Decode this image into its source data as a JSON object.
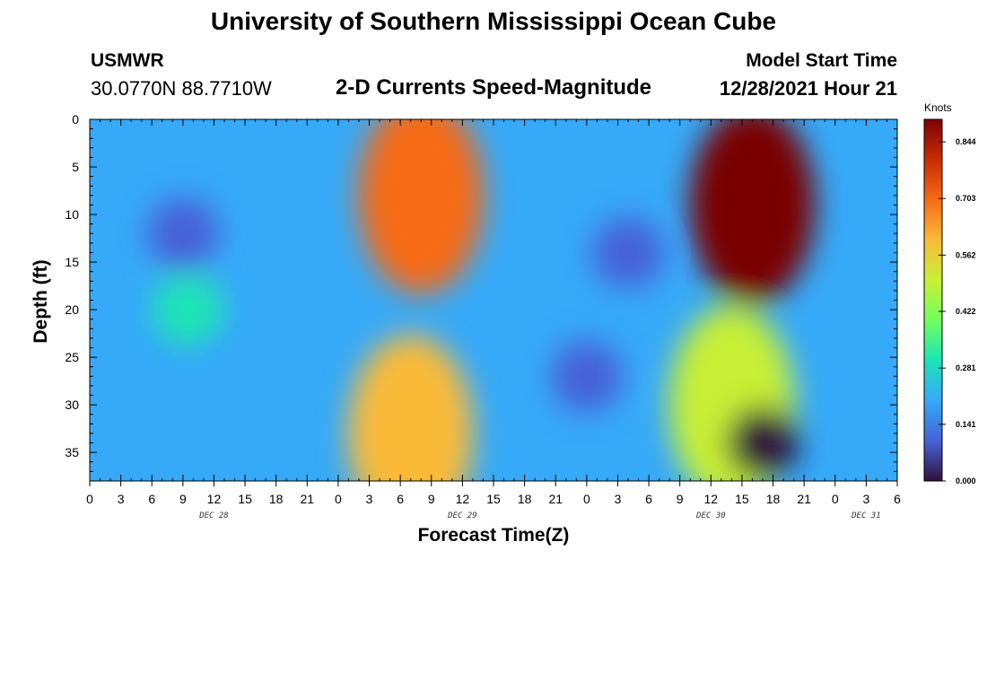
{
  "header": {
    "title": "University of Southern Mississippi Ocean Cube",
    "station": "USMWR",
    "coords": "30.0770N  88.7710W",
    "subtitle": "2-D Currents Speed-Magnitude",
    "model_start_label": "Model Start Time",
    "model_start_value": "12/28/2021 Hour 21"
  },
  "footer": {
    "title": "University of Southern Mississippi Ocean Cube"
  },
  "chart_data": {
    "type": "heatmap",
    "title": "2-D Currents Speed-Magnitude",
    "xlabel": "Forecast Time(Z)",
    "ylabel": "Depth (ft)",
    "x_ticks": [
      "0",
      "3",
      "6",
      "9",
      "12",
      "15",
      "18",
      "21",
      "0",
      "3",
      "6",
      "9",
      "12",
      "15",
      "18",
      "21",
      "0",
      "3",
      "6",
      "9",
      "12",
      "15",
      "18",
      "21",
      "0",
      "3",
      "6"
    ],
    "day_labels": [
      {
        "label": "DEC 28",
        "hour_index": 12
      },
      {
        "label": "DEC 29",
        "hour_index": 36
      },
      {
        "label": "DEC 30",
        "hour_index": 60
      },
      {
        "label": "DEC 31",
        "hour_index": 75
      }
    ],
    "x_range_hours": [
      0,
      78
    ],
    "y_ticks": [
      0,
      5,
      10,
      15,
      20,
      25,
      30,
      35
    ],
    "y_range": [
      0,
      38
    ],
    "y_inverted": true,
    "colorbar": {
      "unit": "Knots",
      "range": [
        0.0,
        0.9
      ],
      "ticks": [
        "0.000",
        "0.141",
        "0.281",
        "0.422",
        "0.562",
        "0.703",
        "0.844"
      ],
      "colors": [
        "#30123b",
        "#4662d7",
        "#36a9f8",
        "#1ae4b6",
        "#72fe5e",
        "#c8ef34",
        "#faba39",
        "#f66b19",
        "#ca2a04",
        "#7a0403"
      ]
    },
    "features": [
      {
        "hour": 9,
        "depth": 12,
        "speed": 0.12,
        "note": "blue minimum"
      },
      {
        "hour": 9.5,
        "depth": 20,
        "speed": 0.28
      },
      {
        "hour": 32,
        "depth": 8,
        "speed": 0.66,
        "note": "red maximum"
      },
      {
        "hour": 31,
        "depth": 33,
        "speed": 0.55
      },
      {
        "hour": 48,
        "depth": 27,
        "speed": 0.09
      },
      {
        "hour": 52,
        "depth": 14,
        "speed": 0.09
      },
      {
        "hour": 64,
        "depth": 9,
        "speed": 0.86,
        "note": "strongest maximum"
      },
      {
        "hour": 62,
        "depth": 30,
        "speed": 0.5
      },
      {
        "hour": 65,
        "depth": 34,
        "speed": 0.0,
        "note": "black minimum"
      }
    ]
  }
}
